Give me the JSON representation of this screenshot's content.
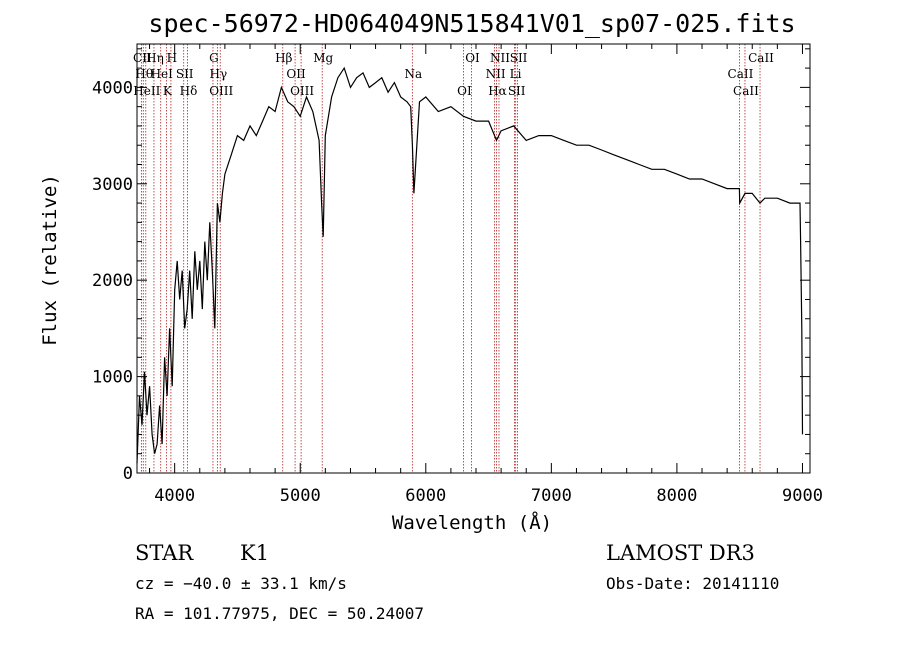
{
  "chart_data": {
    "type": "line",
    "title": "spec-56972-HD064049N515841V01_sp07-025.fits",
    "xlabel": "Wavelength (Å)",
    "ylabel": "Flux (relative)",
    "xlim": [
      3700,
      9060
    ],
    "ylim": [
      0,
      4450
    ],
    "xticks": [
      4000,
      5000,
      6000,
      7000,
      8000,
      9000
    ],
    "yticks": [
      0,
      1000,
      2000,
      3000,
      4000
    ],
    "grid": false,
    "series": [
      {
        "x": [
          3700,
          3720,
          3740,
          3760,
          3780,
          3800,
          3820,
          3840,
          3860,
          3880,
          3900,
          3920,
          3940,
          3960,
          3980,
          4000,
          4020,
          4040,
          4060,
          4080,
          4100,
          4120,
          4140,
          4160,
          4180,
          4200,
          4220,
          4240,
          4260,
          4280,
          4300,
          4320,
          4340,
          4360,
          4380,
          4400,
          4450,
          4500,
          4550,
          4600,
          4650,
          4700,
          4750,
          4800,
          4850,
          4900,
          4950,
          5000,
          5050,
          5100,
          5150,
          5170,
          5183,
          5200,
          5250,
          5300,
          5350,
          5400,
          5450,
          5500,
          5550,
          5600,
          5650,
          5700,
          5750,
          5800,
          5850,
          5880,
          5893,
          5905,
          5950,
          6000,
          6100,
          6200,
          6300,
          6400,
          6500,
          6563,
          6600,
          6700,
          6800,
          6900,
          7000,
          7100,
          7200,
          7300,
          7400,
          7500,
          7600,
          7700,
          7800,
          7900,
          8000,
          8100,
          8200,
          8300,
          8400,
          8498,
          8500,
          8542,
          8600,
          8662,
          8700,
          8800,
          8900,
          8980,
          8985,
          8995,
          9000
        ],
        "y": [
          100,
          800,
          500,
          1050,
          600,
          900,
          400,
          200,
          300,
          700,
          300,
          1200,
          800,
          1500,
          900,
          1900,
          2200,
          1800,
          2100,
          1500,
          1700,
          2100,
          1600,
          2300,
          1900,
          2200,
          1700,
          2400,
          2000,
          2600,
          2100,
          1500,
          2800,
          2600,
          2900,
          3100,
          3300,
          3500,
          3450,
          3600,
          3500,
          3650,
          3800,
          3750,
          4000,
          3850,
          3800,
          3700,
          3900,
          3750,
          3450,
          2800,
          2450,
          3500,
          3900,
          4100,
          4200,
          4000,
          4100,
          4150,
          4000,
          4050,
          4100,
          3950,
          4050,
          3900,
          3850,
          3800,
          3400,
          2900,
          3850,
          3900,
          3750,
          3800,
          3700,
          3650,
          3650,
          3450,
          3550,
          3600,
          3450,
          3500,
          3500,
          3450,
          3400,
          3400,
          3350,
          3300,
          3250,
          3200,
          3150,
          3150,
          3100,
          3050,
          3050,
          3000,
          2950,
          2950,
          2800,
          2900,
          2900,
          2800,
          2850,
          2850,
          2800,
          2800,
          2400,
          1500,
          400
        ]
      }
    ],
    "lines": [
      {
        "w": 3735,
        "label": "CII"
      },
      {
        "w": 3750,
        "label": "Hθ"
      },
      {
        "w": 3770,
        "label": "HeII"
      },
      {
        "w": 3835,
        "label": "Hη"
      },
      {
        "w": 3889,
        "label": "HeI"
      },
      {
        "w": 3934,
        "label": "K"
      },
      {
        "w": 3970,
        "label": "H"
      },
      {
        "w": 4072,
        "label": "SII"
      },
      {
        "w": 4102,
        "label": "Hδ"
      },
      {
        "w": 4305,
        "label": "G"
      },
      {
        "w": 4340,
        "label": "Hγ"
      },
      {
        "w": 4363,
        "label": "OIII"
      },
      {
        "w": 4861,
        "label": "Hβ"
      },
      {
        "w": 4959,
        "label": "OII"
      },
      {
        "w": 5007,
        "label": "OIII"
      },
      {
        "w": 5175,
        "label": "Mg"
      },
      {
        "w": 5893,
        "label": "Na"
      },
      {
        "w": 6300,
        "label": "OI"
      },
      {
        "w": 6364,
        "label": "OI"
      },
      {
        "w": 6548,
        "label": "NII"
      },
      {
        "w": 6563,
        "label": "Hα"
      },
      {
        "w": 6583,
        "label": "NII"
      },
      {
        "w": 6707,
        "label": "Li"
      },
      {
        "w": 6716,
        "label": "SII"
      },
      {
        "w": 6731,
        "label": "SII"
      },
      {
        "w": 8498,
        "label": "CaII"
      },
      {
        "w": 8542,
        "label": "CaII"
      },
      {
        "w": 8662,
        "label": "CaII"
      }
    ]
  },
  "footer": {
    "object_class": "STAR",
    "subclass": "K1",
    "survey": "LAMOST DR3",
    "cz": "cz = −40.0 ± 33.1 km/s",
    "obs_date": "Obs-Date: 20141110",
    "coords": "RA = 101.77975, DEC =  50.24007"
  }
}
